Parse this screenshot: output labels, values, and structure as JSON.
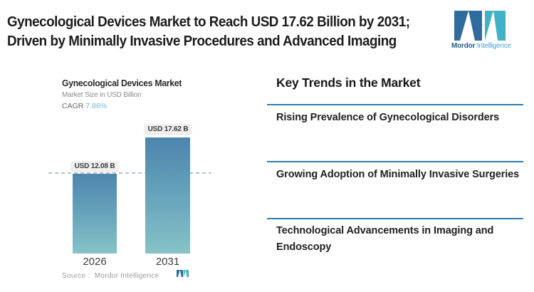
{
  "header": {
    "title_line1": "Gynecological Devices Market to Reach USD 17.62 Billion by 2031;",
    "title_line2": "Driven by Minimally Invasive Procedures and Advanced Imaging",
    "brand_name_primary": "Mordor",
    "brand_name_secondary": "Intelligence"
  },
  "chart": {
    "title": "Gynecological Devices Market",
    "subtitle": "Market Size in USD Billion",
    "cagr_label": "CAGR",
    "cagr_value": "7.86%",
    "source_text": "Source :  Mordor Intelligence"
  },
  "chart_data": {
    "type": "bar",
    "title": "Gynecological Devices Market",
    "subtitle": "Market Size in USD Billion",
    "unit": "USD Billion",
    "categories": [
      "2026",
      "2031"
    ],
    "values": [
      12.08,
      17.62
    ],
    "value_labels": [
      "USD 12.08 B",
      "USD 17.62 B"
    ],
    "cagr_percent": 7.86,
    "reference_line_value": 12.08,
    "ylim": [
      0,
      17.62
    ],
    "grid": false,
    "legend": false,
    "bar_color_top": "#4e85ad",
    "bar_color_bottom": "#87c3c7"
  },
  "trends": {
    "heading": "Key Trends in the Market",
    "items": [
      {
        "label": "Rising Prevalence of Gynecological Disorders"
      },
      {
        "label": "Growing Adoption of Minimally Invasive Surgeries"
      },
      {
        "label": "Technological Advancements in Imaging and Endoscopy"
      }
    ]
  },
  "colors": {
    "accent_divider": "#2b7dad",
    "brand_dark_blue": "#2f6b9c",
    "brand_teal": "#41b2c6",
    "cagr_value_color": "#76b5d8",
    "dashed_line": "#b9c4cb",
    "headline_text": "#1c1c1c"
  }
}
